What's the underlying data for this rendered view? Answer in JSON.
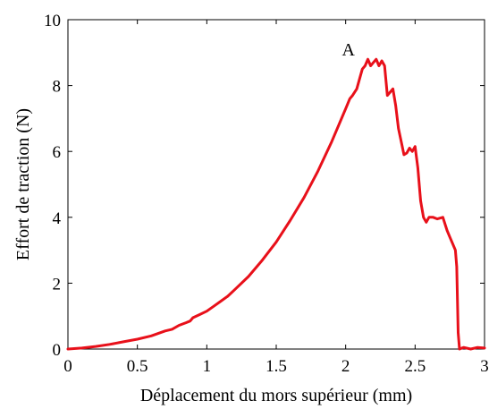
{
  "chart_data": {
    "type": "line",
    "title": "",
    "xlabel": "Déplacement du mors supérieur (mm)",
    "ylabel": "Effort de traction (N)",
    "xlim": [
      0,
      3
    ],
    "ylim": [
      0,
      10
    ],
    "xticks": [
      0,
      0.5,
      1,
      1.5,
      2,
      2.5,
      3
    ],
    "xtick_labels": [
      "0",
      "0.5",
      "1",
      "1.5",
      "2",
      "2.5",
      "3"
    ],
    "yticks": [
      0,
      2,
      4,
      6,
      8,
      10
    ],
    "ytick_labels": [
      "0",
      "2",
      "4",
      "6",
      "8",
      "10"
    ],
    "grid": false,
    "legend": "none",
    "series": [
      {
        "color": "#e8101a",
        "x": [
          0,
          0.1,
          0.2,
          0.3,
          0.4,
          0.5,
          0.6,
          0.7,
          0.75,
          0.8,
          0.85,
          0.88,
          0.9,
          0.95,
          1.0,
          1.05,
          1.1,
          1.15,
          1.2,
          1.3,
          1.4,
          1.5,
          1.6,
          1.7,
          1.8,
          1.9,
          1.95,
          2.0,
          2.03,
          2.05,
          2.08,
          2.1,
          2.12,
          2.14,
          2.16,
          2.18,
          2.2,
          2.22,
          2.24,
          2.26,
          2.28,
          2.3,
          2.32,
          2.34,
          2.36,
          2.38,
          2.4,
          2.42,
          2.44,
          2.46,
          2.48,
          2.5,
          2.52,
          2.54,
          2.56,
          2.58,
          2.6,
          2.63,
          2.66,
          2.7,
          2.73,
          2.75,
          2.77,
          2.79,
          2.8,
          2.81,
          2.82,
          2.85,
          2.9,
          2.95,
          3.0
        ],
        "y": [
          0,
          0.03,
          0.08,
          0.14,
          0.22,
          0.3,
          0.4,
          0.55,
          0.6,
          0.72,
          0.8,
          0.85,
          0.95,
          1.05,
          1.15,
          1.3,
          1.45,
          1.6,
          1.8,
          2.2,
          2.7,
          3.25,
          3.9,
          4.6,
          5.4,
          6.3,
          6.8,
          7.3,
          7.6,
          7.7,
          7.9,
          8.2,
          8.5,
          8.6,
          8.8,
          8.6,
          8.7,
          8.8,
          8.6,
          8.75,
          8.6,
          7.7,
          7.8,
          7.9,
          7.4,
          6.7,
          6.3,
          5.9,
          5.95,
          6.1,
          6.0,
          6.15,
          5.5,
          4.5,
          4.0,
          3.85,
          4.0,
          4.0,
          3.95,
          4.0,
          3.6,
          3.4,
          3.2,
          3.0,
          2.5,
          0.5,
          0.0,
          0.05,
          0.0,
          0.05,
          0.03
        ]
      }
    ],
    "annotations": [
      {
        "text": "A",
        "x": 2.02,
        "y": 9.1
      }
    ]
  }
}
